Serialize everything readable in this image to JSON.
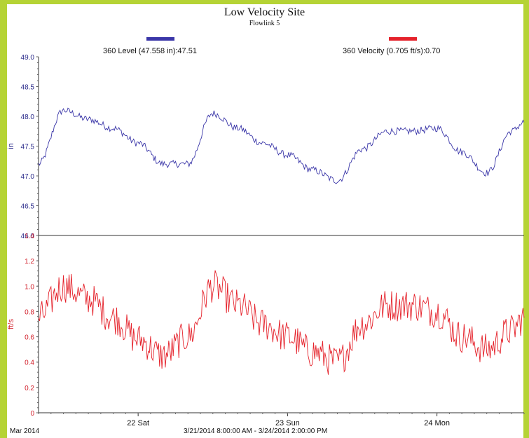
{
  "chart_data": [
    {
      "type": "line",
      "title": "Low Velocity Site",
      "subtitle": "Flowlink 5",
      "legend": "360 Level (47.558 in):47.51",
      "ylabel": "in",
      "ylim": [
        46.0,
        49.0
      ],
      "yticks": [
        "49.0",
        "48.5",
        "48.0",
        "47.5",
        "47.0",
        "46.5",
        "46.0"
      ],
      "y_tick_values": [
        49.0,
        48.5,
        48.0,
        47.5,
        47.0,
        46.5,
        46.0
      ],
      "color": "#3a36a8",
      "series": [
        {
          "name": "360 Level (47.558 in):47.51",
          "x": [
            "2014-03-21 08:00",
            "2014-03-21 12:00",
            "2014-03-21 16:00",
            "2014-03-21 20:00",
            "2014-03-22 00:00",
            "2014-03-22 04:00",
            "2014-03-22 08:00",
            "2014-03-22 12:00",
            "2014-03-22 16:00",
            "2014-03-22 20:00",
            "2014-03-23 00:00",
            "2014-03-23 04:00",
            "2014-03-23 08:00",
            "2014-03-23 12:00",
            "2014-03-23 16:00",
            "2014-03-23 20:00",
            "2014-03-24 00:00",
            "2014-03-24 04:00",
            "2014-03-24 08:00",
            "2014-03-24 12:00",
            "2014-03-24 14:00"
          ],
          "y": [
            47.2,
            48.1,
            47.95,
            47.8,
            47.55,
            47.2,
            47.2,
            48.05,
            47.8,
            47.55,
            47.35,
            47.1,
            46.92,
            47.45,
            47.75,
            47.75,
            47.8,
            47.4,
            47.05,
            47.75,
            47.9
          ]
        }
      ]
    },
    {
      "type": "line",
      "legend": "360 Velocity (0.705 ft/s):0.70",
      "ylabel": "ft/s",
      "ylim": [
        0,
        1.4
      ],
      "yticks": [
        "1.4",
        "1.2",
        "1.0",
        "0.8",
        "0.6",
        "0.4",
        "0.2",
        "0"
      ],
      "y_tick_values": [
        1.4,
        1.2,
        1.0,
        0.8,
        0.6,
        0.4,
        0.2,
        0
      ],
      "color": "#e5222b",
      "series": [
        {
          "name": "360 Velocity (0.705 ft/s):0.70",
          "x": [
            "2014-03-21 08:00",
            "2014-03-21 12:00",
            "2014-03-21 16:00",
            "2014-03-21 20:00",
            "2014-03-22 00:00",
            "2014-03-22 04:00",
            "2014-03-22 08:00",
            "2014-03-22 12:00",
            "2014-03-22 16:00",
            "2014-03-22 20:00",
            "2014-03-23 00:00",
            "2014-03-23 04:00",
            "2014-03-23 08:00",
            "2014-03-23 12:00",
            "2014-03-23 16:00",
            "2014-03-23 20:00",
            "2014-03-24 00:00",
            "2014-03-24 04:00",
            "2014-03-24 08:00",
            "2014-03-24 12:00",
            "2014-03-24 14:00"
          ],
          "y": [
            0.75,
            1.0,
            0.9,
            0.75,
            0.58,
            0.45,
            0.6,
            1.0,
            0.85,
            0.7,
            0.6,
            0.48,
            0.4,
            0.7,
            0.85,
            0.85,
            0.8,
            0.6,
            0.5,
            0.65,
            0.75
          ]
        }
      ]
    }
  ],
  "x_axis": {
    "labels": [
      "22 Sat",
      "23 Sun",
      "24 Mon"
    ],
    "label_times": [
      "2014-03-22 00:00",
      "2014-03-23 00:00",
      "2014-03-24 00:00"
    ],
    "start": "2014-03-21 08:00",
    "end": "2014-03-24 14:00",
    "footer_left": "Mar 2014",
    "footer_center": "3/21/2014 8:00:00 AM - 3/24/2014 2:00:00 PM"
  },
  "colors": {
    "frame": "#b5d335",
    "level": "#3a36a8",
    "velocity": "#e5222b"
  }
}
